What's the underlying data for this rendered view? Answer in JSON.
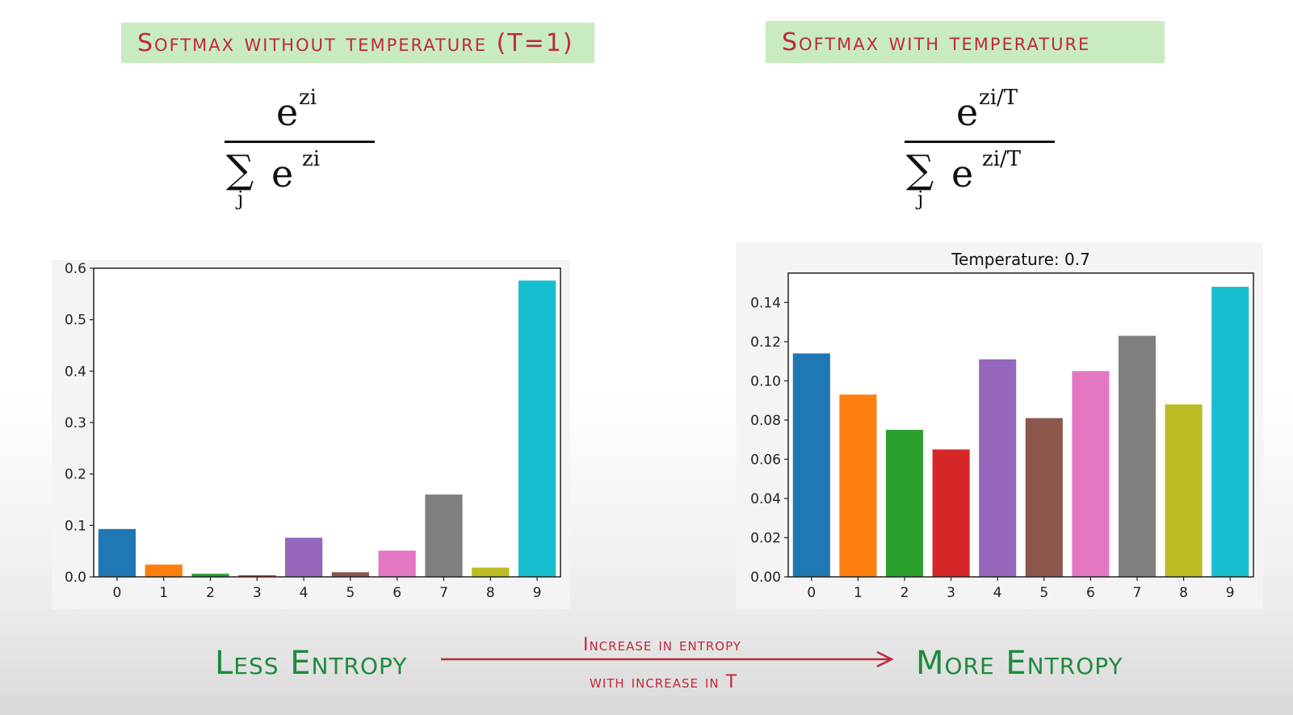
{
  "headings": {
    "left": "Softmax without temperature (T=1)",
    "right": "Softmax with temperature"
  },
  "formulas": {
    "left": {
      "numerator": "e",
      "num_exp": "zi",
      "sum": "∑",
      "sum_idx": "j",
      "den_base": "e",
      "den_exp": "zi"
    },
    "right": {
      "numerator": "e",
      "num_exp": "zi/T",
      "sum": "∑",
      "sum_idx": "j",
      "den_base": "e",
      "den_exp": "zi/T"
    }
  },
  "bar_colors": [
    "#1f77b4",
    "#ff7f0e",
    "#2ca02c",
    "#d62728",
    "#9467bd",
    "#8c564b",
    "#e377c2",
    "#7f7f7f",
    "#bcbd22",
    "#17becf"
  ],
  "chart_data": [
    {
      "type": "bar",
      "title": "",
      "categories": [
        "0",
        "1",
        "2",
        "3",
        "4",
        "5",
        "6",
        "7",
        "8",
        "9"
      ],
      "values": [
        0.093,
        0.024,
        0.006,
        0.003,
        0.076,
        0.009,
        0.051,
        0.16,
        0.018,
        0.576
      ],
      "ylim": [
        0,
        0.6
      ],
      "yticks": [
        "0.0",
        "0.1",
        "0.2",
        "0.3",
        "0.4",
        "0.5",
        "0.6"
      ],
      "ytick_values": [
        0,
        0.1,
        0.2,
        0.3,
        0.4,
        0.5,
        0.6
      ],
      "grid": false
    },
    {
      "type": "bar",
      "title": "Temperature: 0.7",
      "categories": [
        "0",
        "1",
        "2",
        "3",
        "4",
        "5",
        "6",
        "7",
        "8",
        "9"
      ],
      "values": [
        0.114,
        0.093,
        0.075,
        0.065,
        0.111,
        0.081,
        0.105,
        0.123,
        0.088,
        0.148
      ],
      "ylim": [
        0,
        0.155
      ],
      "yticks": [
        "0.00",
        "0.02",
        "0.04",
        "0.06",
        "0.08",
        "0.10",
        "0.12",
        "0.14"
      ],
      "ytick_values": [
        0,
        0.02,
        0.04,
        0.06,
        0.08,
        0.1,
        0.12,
        0.14
      ],
      "grid": false
    }
  ],
  "bottom": {
    "less": "Less Entropy",
    "more": "More Entropy",
    "arrow_top": "Increase in entropy",
    "arrow_bottom": "with increase in T"
  }
}
